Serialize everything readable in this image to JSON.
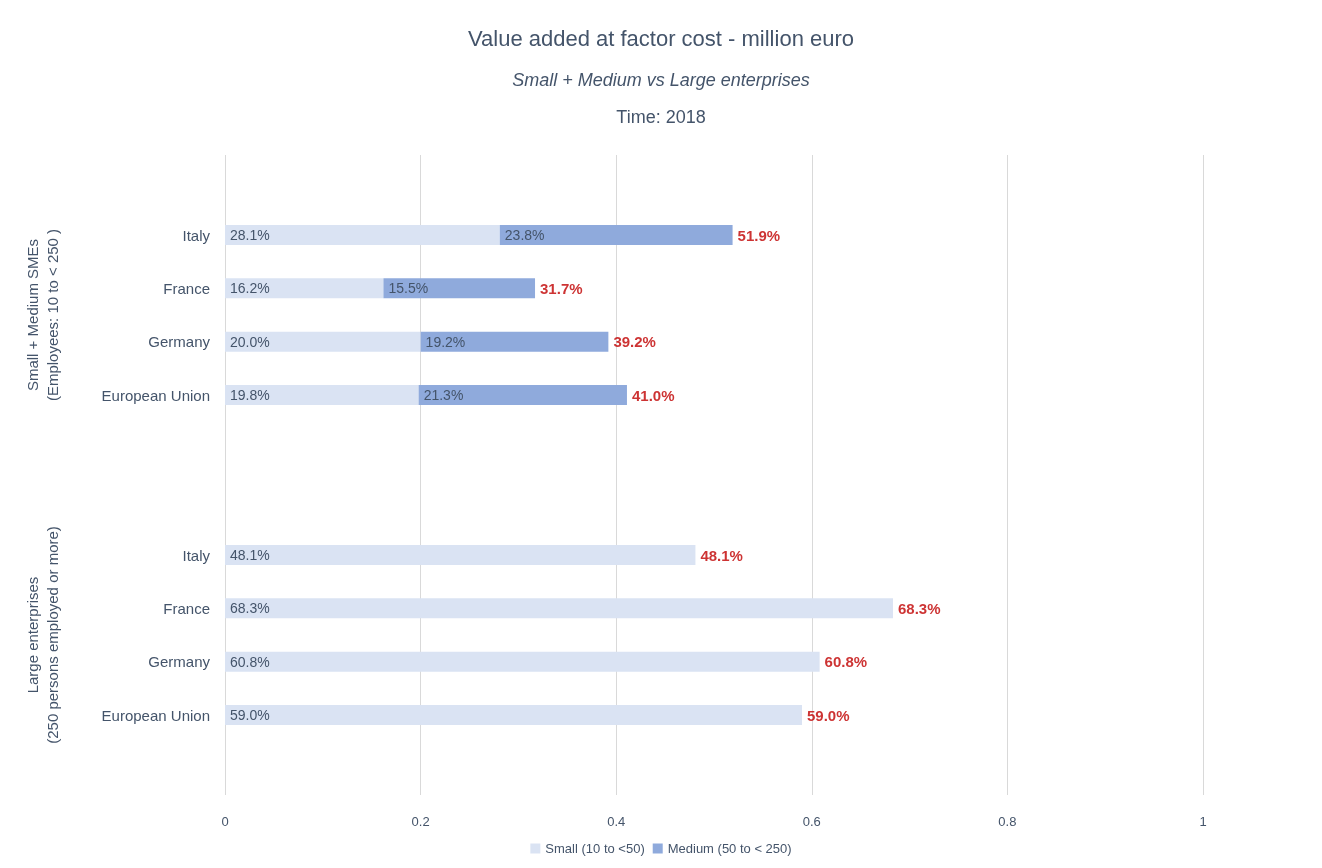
{
  "chart_data": {
    "type": "bar",
    "orientation": "horizontal",
    "stacked": true,
    "title": "Value added at factor cost - million euro",
    "subtitle": "Small + Medium vs Large enterprises",
    "annotations": [
      "Time: 2018",
      "Small + Medium SMEs\n(Employees: 10 to < 250 )",
      "Large enterprises\n(250 persons employed or more)"
    ],
    "categories": [
      null,
      "Italy",
      "France",
      "Germany",
      "European Union",
      null,
      null,
      "Italy",
      "France",
      "Germany",
      "European Union",
      null
    ],
    "series": [
      {
        "name": "Small (10 to <50)",
        "color": "#dae3f3",
        "values": [
          null,
          0.281,
          0.162,
          0.2,
          0.198,
          null,
          null,
          0.481,
          0.683,
          0.608,
          0.59,
          null
        ],
        "value_labels": [
          null,
          "28.1%",
          "16.2%",
          "20.0%",
          "19.8%",
          null,
          null,
          "48.1%",
          "68.3%",
          "60.8%",
          "59.0%",
          null
        ]
      },
      {
        "name": "Medium (50 to < 250)",
        "color": "#8faadc",
        "values": [
          null,
          0.238,
          0.155,
          0.192,
          0.213,
          null,
          null,
          null,
          null,
          null,
          null,
          null
        ],
        "value_labels": [
          null,
          "23.8%",
          "15.5%",
          "19.2%",
          "21.3%",
          null,
          null,
          null,
          null,
          null,
          null,
          null
        ]
      }
    ],
    "totals": [
      null,
      "51.9%",
      "31.7%",
      "39.2%",
      "41.0%",
      null,
      null,
      "48.1%",
      "68.3%",
      "60.8%",
      "59.0%",
      null
    ],
    "xlim": [
      0,
      1
    ],
    "xticks": [
      0,
      0.2,
      0.4,
      0.6,
      0.8,
      1
    ],
    "grid": "x",
    "legend": "bottom"
  }
}
